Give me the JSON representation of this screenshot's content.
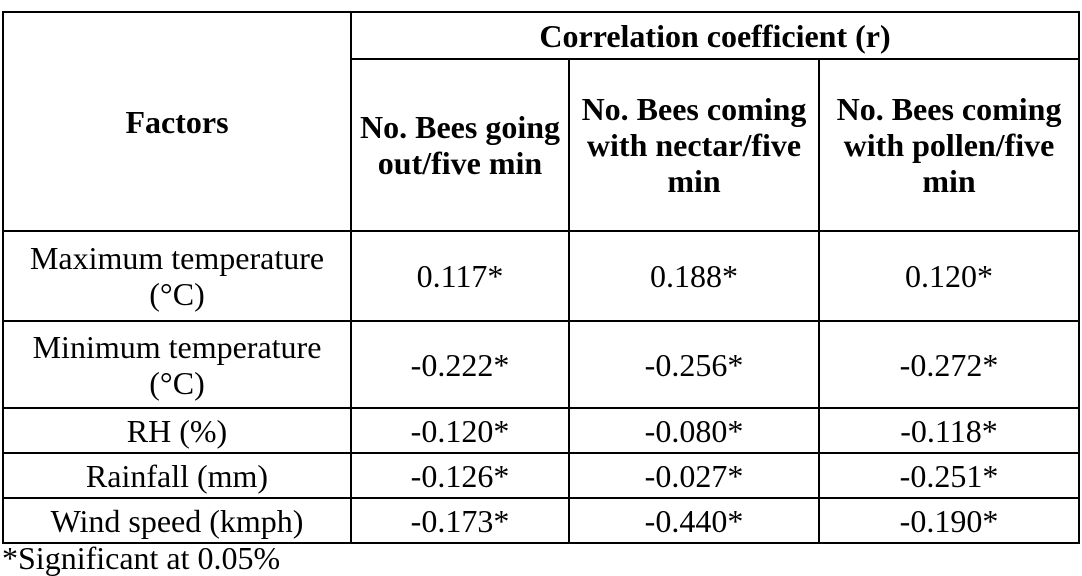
{
  "table": {
    "factors_header": "Factors",
    "group_header": "Correlation coefficient (r)",
    "columns": [
      "No. Bees going out/five min",
      "No. Bees coming with nectar/five min",
      "No. Bees coming with pollen/five min"
    ],
    "rows": [
      [
        "Maximum temperature (°C)",
        "0.117*",
        "0.188*",
        "0.120*"
      ],
      [
        "Minimum temperature (°C)",
        "-0.222*",
        "-0.256*",
        "-0.272*"
      ],
      [
        "RH (%)",
        "-0.120*",
        "-0.080*",
        "-0.118*"
      ],
      [
        "Rainfall (mm)",
        "-0.126*",
        "-0.027*",
        "-0.251*"
      ],
      [
        "Wind speed (kmph)",
        "-0.173*",
        "-0.440*",
        "-0.190*"
      ]
    ],
    "footnote": "*Significant at 0.05%"
  }
}
